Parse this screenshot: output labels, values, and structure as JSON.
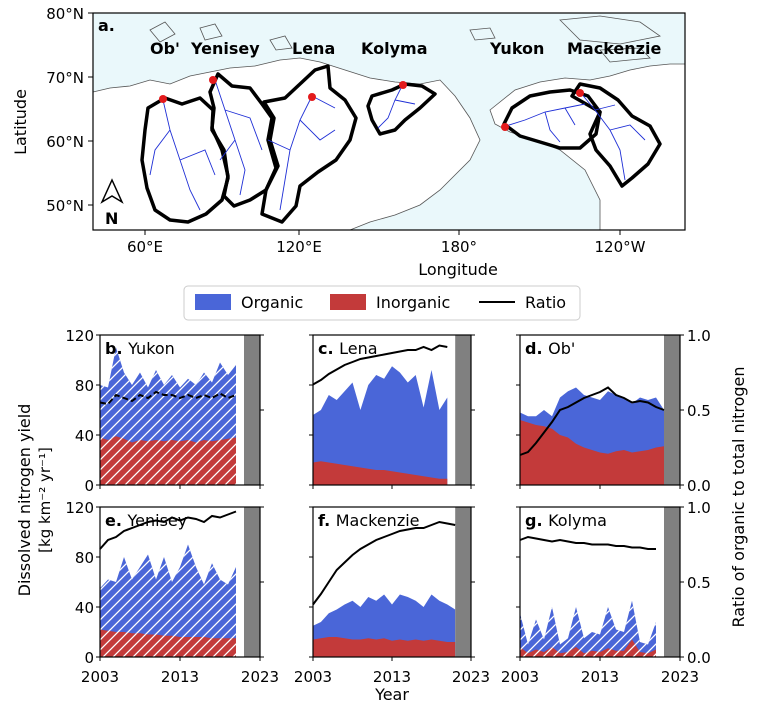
{
  "colors": {
    "organic": "#4a66d8",
    "inorganic": "#c33a3a",
    "ratio": "#000000",
    "ocean": "#eaf8fb",
    "gap": "#808080",
    "river": "#1f2fd6",
    "outlet": "#e31a1c"
  },
  "map": {
    "panel_label": "a.",
    "xlabel": "Longitude",
    "ylabel": "Latitude",
    "yticks": [
      "80°N",
      "70°N",
      "60°N",
      "50°N"
    ],
    "xticks": [
      "60°E",
      "120°E",
      "180°",
      "120°W"
    ],
    "north_label": "N",
    "north_icon": "north-arrow-icon",
    "basin_labels": [
      "Ob'",
      "Yenisey",
      "Lena",
      "Kolyma",
      "Yukon",
      "Mackenzie"
    ]
  },
  "legend": {
    "organic": "Organic",
    "inorganic": "Inorganic",
    "ratio": "Ratio"
  },
  "axes": {
    "left_ylabel_line1": "Dissolved nitrogen yield",
    "left_ylabel_line2": "[kg km⁻² yr⁻¹]",
    "right_ylabel": "Ratio of organic to total nitrogen",
    "xlabel": "Year",
    "yield_ticks": [
      "0",
      "40",
      "80",
      "120"
    ],
    "ratio_ticks": [
      "0.0",
      "0.5",
      "1.0"
    ],
    "year_ticks": [
      "2003",
      "2013",
      "2023"
    ]
  },
  "chart_data": [
    {
      "type": "area",
      "panel": "b.",
      "title": "Yukon",
      "hatched": true,
      "ratio_style": "dashed",
      "years": [
        2003,
        2004,
        2005,
        2006,
        2007,
        2008,
        2009,
        2010,
        2011,
        2012,
        2013,
        2014,
        2015,
        2016,
        2017,
        2018,
        2019,
        2020
      ],
      "series": [
        {
          "name": "Total",
          "values": [
            80,
            78,
            110,
            90,
            80,
            90,
            78,
            92,
            80,
            88,
            78,
            85,
            80,
            90,
            82,
            98,
            88,
            96
          ]
        },
        {
          "name": "Inorganic",
          "values": [
            38,
            36,
            39,
            37,
            34,
            36,
            35,
            36,
            35,
            36,
            35,
            36,
            34,
            36,
            35,
            36,
            37,
            38
          ]
        },
        {
          "name": "Ratio",
          "values": [
            0.55,
            0.54,
            0.6,
            0.58,
            0.56,
            0.6,
            0.58,
            0.62,
            0.6,
            0.6,
            0.58,
            0.6,
            0.58,
            0.6,
            0.58,
            0.61,
            0.58,
            0.6
          ]
        }
      ],
      "ylim_yield": [
        0,
        120
      ],
      "ylim_ratio": [
        0,
        1
      ],
      "xlim": [
        2003,
        2023
      ],
      "gap_start": 2021
    },
    {
      "type": "area",
      "panel": "c.",
      "title": "Lena",
      "hatched": false,
      "ratio_style": "solid",
      "years": [
        2003,
        2004,
        2005,
        2006,
        2007,
        2008,
        2009,
        2010,
        2011,
        2012,
        2013,
        2014,
        2015,
        2016,
        2017,
        2018,
        2019,
        2020
      ],
      "series": [
        {
          "name": "Total",
          "values": [
            56,
            60,
            72,
            68,
            75,
            82,
            60,
            80,
            88,
            85,
            95,
            90,
            82,
            88,
            62,
            92,
            60,
            70
          ]
        },
        {
          "name": "Inorganic",
          "values": [
            18,
            19,
            18,
            17,
            16,
            15,
            14,
            13,
            12,
            12,
            11,
            10,
            9,
            8,
            7,
            6,
            5,
            5
          ]
        },
        {
          "name": "Ratio",
          "values": [
            0.67,
            0.7,
            0.74,
            0.77,
            0.8,
            0.82,
            0.84,
            0.85,
            0.86,
            0.87,
            0.88,
            0.89,
            0.9,
            0.9,
            0.92,
            0.9,
            0.93,
            0.92
          ]
        }
      ],
      "ylim_yield": [
        0,
        120
      ],
      "ylim_ratio": [
        0,
        1
      ],
      "xlim": [
        2003,
        2023
      ],
      "gap_start": 2021
    },
    {
      "type": "area",
      "panel": "d.",
      "title": "Ob'",
      "hatched": false,
      "ratio_style": "solid",
      "years": [
        2003,
        2004,
        2005,
        2006,
        2007,
        2008,
        2009,
        2010,
        2011,
        2012,
        2013,
        2014,
        2015,
        2016,
        2017,
        2018,
        2019,
        2020,
        2021
      ],
      "series": [
        {
          "name": "Total",
          "values": [
            58,
            55,
            55,
            60,
            55,
            70,
            75,
            78,
            72,
            70,
            68,
            75,
            72,
            70,
            65,
            70,
            68,
            70,
            60
          ]
        },
        {
          "name": "Inorganic",
          "values": [
            52,
            50,
            48,
            47,
            45,
            40,
            38,
            33,
            30,
            28,
            26,
            25,
            27,
            28,
            26,
            27,
            28,
            30,
            31
          ]
        },
        {
          "name": "Ratio",
          "values": [
            0.2,
            0.22,
            0.28,
            0.35,
            0.42,
            0.5,
            0.52,
            0.55,
            0.58,
            0.6,
            0.62,
            0.65,
            0.6,
            0.58,
            0.55,
            0.56,
            0.55,
            0.52,
            0.5
          ]
        }
      ],
      "ylim_yield": [
        0,
        120
      ],
      "ylim_ratio": [
        0,
        1
      ],
      "xlim": [
        2003,
        2023
      ],
      "gap_start": 2021
    },
    {
      "type": "area",
      "panel": "e.",
      "title": "Yenisey",
      "hatched": true,
      "ratio_style": "solid",
      "years": [
        2003,
        2004,
        2005,
        2006,
        2007,
        2008,
        2009,
        2010,
        2011,
        2012,
        2013,
        2014,
        2015,
        2016,
        2017,
        2018,
        2019,
        2020
      ],
      "series": [
        {
          "name": "Total",
          "values": [
            55,
            62,
            60,
            80,
            62,
            72,
            82,
            62,
            80,
            60,
            72,
            90,
            72,
            58,
            75,
            62,
            58,
            72
          ]
        },
        {
          "name": "Inorganic",
          "values": [
            22,
            21,
            20,
            20,
            19,
            19,
            18,
            18,
            17,
            17,
            16,
            16,
            16,
            16,
            15,
            15,
            15,
            15
          ]
        },
        {
          "name": "Ratio",
          "values": [
            0.72,
            0.78,
            0.8,
            0.84,
            0.86,
            0.88,
            0.9,
            0.91,
            0.9,
            0.93,
            0.91,
            0.93,
            0.92,
            0.9,
            0.94,
            0.93,
            0.95,
            0.97
          ]
        }
      ],
      "ylim_yield": [
        0,
        120
      ],
      "ylim_ratio": [
        0,
        1
      ],
      "xlim": [
        2003,
        2023
      ],
      "gap_start": 2021
    },
    {
      "type": "area",
      "panel": "f.",
      "title": "Mackenzie",
      "hatched": false,
      "ratio_style": "solid",
      "years": [
        2003,
        2004,
        2005,
        2006,
        2007,
        2008,
        2009,
        2010,
        2011,
        2012,
        2013,
        2014,
        2015,
        2016,
        2017,
        2018,
        2019,
        2020,
        2021
      ],
      "series": [
        {
          "name": "Total",
          "values": [
            25,
            28,
            35,
            38,
            42,
            45,
            40,
            48,
            45,
            50,
            42,
            50,
            48,
            45,
            40,
            50,
            45,
            42,
            38
          ]
        },
        {
          "name": "Inorganic",
          "values": [
            14,
            15,
            16,
            16,
            15,
            14,
            14,
            15,
            14,
            15,
            13,
            14,
            13,
            14,
            13,
            14,
            13,
            12,
            12
          ]
        },
        {
          "name": "Ratio",
          "values": [
            0.35,
            0.42,
            0.5,
            0.58,
            0.63,
            0.68,
            0.72,
            0.75,
            0.78,
            0.8,
            0.82,
            0.84,
            0.85,
            0.86,
            0.86,
            0.88,
            0.9,
            0.89,
            0.88
          ]
        }
      ],
      "ylim_yield": [
        0,
        120
      ],
      "ylim_ratio": [
        0,
        1
      ],
      "xlim": [
        2003,
        2023
      ],
      "gap_start": 2021
    },
    {
      "type": "area",
      "panel": "g.",
      "title": "Kolyma",
      "hatched": true,
      "ratio_style": "solid",
      "years": [
        2003,
        2004,
        2005,
        2006,
        2007,
        2008,
        2009,
        2010,
        2011,
        2012,
        2013,
        2014,
        2015,
        2016,
        2017,
        2018,
        2019,
        2020
      ],
      "series": [
        {
          "name": "Total",
          "values": [
            35,
            10,
            30,
            14,
            40,
            10,
            15,
            40,
            15,
            20,
            18,
            40,
            22,
            20,
            45,
            12,
            10,
            28
          ]
        },
        {
          "name": "Inorganic",
          "values": [
            8,
            3,
            6,
            4,
            8,
            3,
            4,
            8,
            3,
            5,
            4,
            7,
            5,
            5,
            14,
            4,
            3,
            6
          ]
        },
        {
          "name": "Ratio",
          "values": [
            0.78,
            0.8,
            0.79,
            0.78,
            0.77,
            0.78,
            0.77,
            0.76,
            0.76,
            0.75,
            0.75,
            0.75,
            0.74,
            0.74,
            0.73,
            0.73,
            0.72,
            0.72
          ]
        }
      ],
      "ylim_yield": [
        0,
        120
      ],
      "ylim_ratio": [
        0,
        1
      ],
      "xlim": [
        2003,
        2023
      ],
      "gap_start": 2021
    }
  ]
}
